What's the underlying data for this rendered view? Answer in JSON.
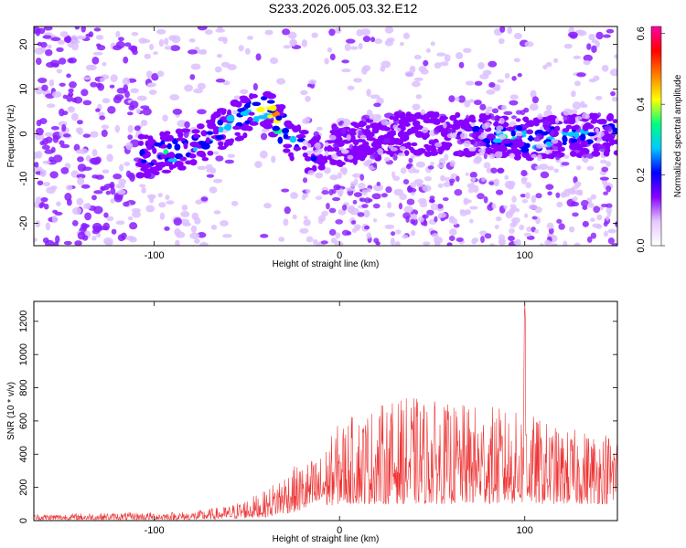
{
  "title": "S233.2026.005.03.32.E12",
  "colorbar": {
    "label": "Normalized spectral amplitude",
    "range": [
      0.0,
      0.62
    ],
    "ticks": [
      "0.0",
      "0.2",
      "0.4",
      "0.6"
    ],
    "tick_values": [
      0.0,
      0.2,
      0.4,
      0.6
    ],
    "colors": [
      "#ffffff",
      "#e6c8ff",
      "#8800ff",
      "#0000ff",
      "#00c8ff",
      "#00ff80",
      "#ffff00",
      "#ff8000",
      "#ff0000",
      "#ff00aa"
    ]
  },
  "chart_data": [
    {
      "type": "heatmap",
      "xlabel": "Height of straight line (km)",
      "ylabel": "Frequency (Hz)",
      "xlim": [
        -165,
        150
      ],
      "ylim": [
        -25,
        24
      ],
      "xticks": [
        "-100",
        "0",
        "100"
      ],
      "xtick_values": [
        -100,
        0,
        100
      ],
      "yticks": [
        "20",
        "10",
        "0",
        "-10",
        "-20"
      ],
      "ytick_values": [
        20,
        10,
        0,
        -10,
        -20
      ],
      "ridge": {
        "x": [
          -105,
          -90,
          -75,
          -60,
          -50,
          -40,
          -32,
          -25,
          -15,
          -5,
          10,
          30,
          60,
          100,
          150
        ],
        "y": [
          -5,
          -4,
          -2,
          2,
          4,
          6,
          2,
          -2,
          -5,
          -3,
          -2,
          0,
          0,
          -1,
          0
        ],
        "peak_amplitude": [
          0.25,
          0.4,
          0.3,
          0.3,
          0.35,
          0.45,
          0.6,
          0.3,
          0.2,
          0.15,
          0.1,
          0.1,
          0.2,
          0.4,
          0.25
        ]
      }
    },
    {
      "type": "line",
      "xlabel": "Height of straight line (km)",
      "ylabel": "SNR (10 * v/v)",
      "xlim": [
        -165,
        150
      ],
      "ylim": [
        0,
        1320
      ],
      "xticks": [
        "-100",
        "0",
        "100"
      ],
      "xtick_values": [
        -100,
        0,
        100
      ],
      "yticks": [
        "0",
        "200",
        "400",
        "600",
        "800",
        "1000",
        "1200"
      ],
      "ytick_values": [
        0,
        200,
        400,
        600,
        800,
        1000,
        1200
      ],
      "color": "#ee3333",
      "envelope": {
        "x": [
          -165,
          -80,
          -60,
          -40,
          -30,
          -20,
          -10,
          0,
          10,
          20,
          40,
          60,
          80,
          98,
          100,
          102,
          120,
          150
        ],
        "low": [
          5,
          5,
          10,
          20,
          40,
          60,
          80,
          100,
          100,
          100,
          100,
          100,
          100,
          100,
          100,
          100,
          100,
          100
        ],
        "high": [
          40,
          55,
          90,
          180,
          300,
          350,
          400,
          600,
          650,
          700,
          750,
          700,
          700,
          650,
          1310,
          650,
          550,
          550
        ]
      }
    }
  ]
}
